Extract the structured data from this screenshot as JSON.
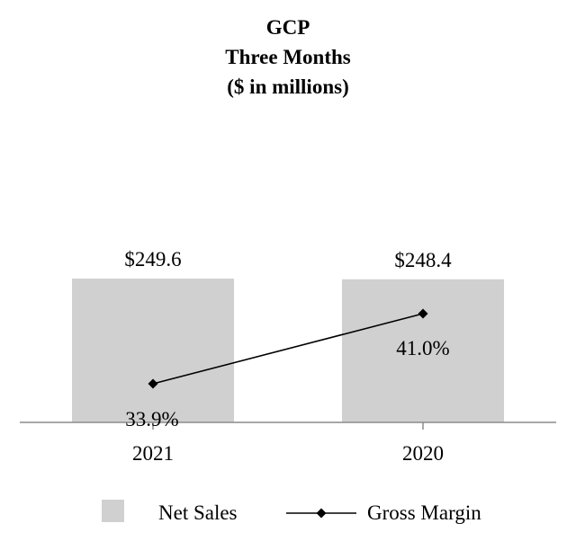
{
  "chart_data": {
    "type": "bar",
    "title": [
      "GCP",
      "Three Months",
      "($ in millions)"
    ],
    "categories": [
      "2021",
      "2020"
    ],
    "series": [
      {
        "name": "Net Sales",
        "kind": "bar",
        "values": [
          249.6,
          248.4
        ],
        "labels": [
          "$249.6",
          "$248.4"
        ],
        "color": "#d0d0d0"
      },
      {
        "name": "Gross Margin",
        "kind": "line",
        "values": [
          33.9,
          41.0
        ],
        "labels": [
          "33.9%",
          "41.0%"
        ],
        "color": "#000000",
        "marker": "diamond"
      }
    ],
    "legend": {
      "placement": "bottom",
      "items": [
        "Net Sales",
        "Gross Margin"
      ]
    },
    "grid": false
  }
}
